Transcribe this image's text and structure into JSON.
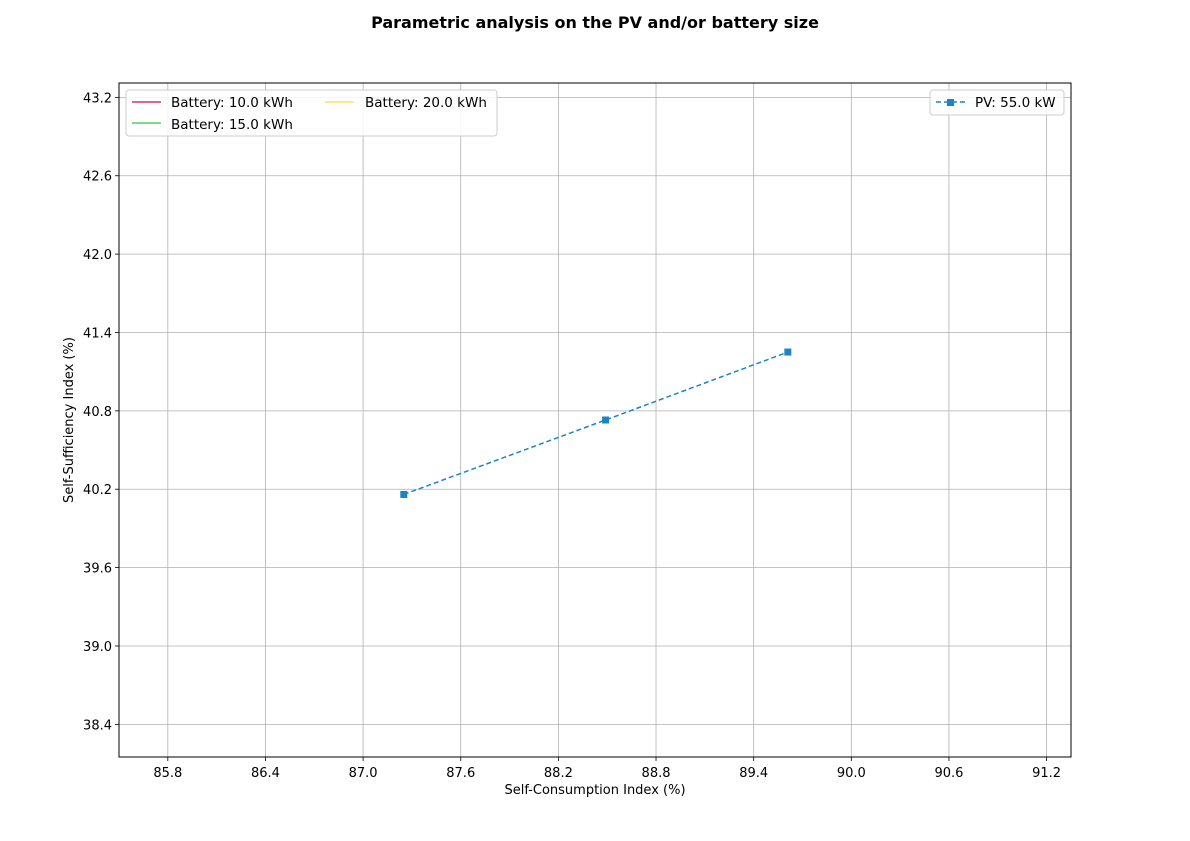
{
  "chart_data": {
    "type": "line",
    "title": "Parametric analysis on the PV and/or battery size",
    "xlabel": "Self-Consumption Index (%)",
    "ylabel": "Self-Sufficiency Index (%)",
    "xlim": [
      85.5,
      91.35
    ],
    "ylim": [
      38.15,
      43.31
    ],
    "xticks": [
      "85.8",
      "86.4",
      "87.0",
      "87.6",
      "88.2",
      "88.8",
      "89.4",
      "90.0",
      "90.6",
      "91.2"
    ],
    "yticks": [
      "38.4",
      "39.0",
      "39.6",
      "40.2",
      "40.8",
      "41.4",
      "42.0",
      "42.6",
      "43.2"
    ],
    "grid": true,
    "legend_left": {
      "placement": "top-left",
      "entries": [
        {
          "label": "Battery: 10.0 kWh",
          "color": "#d6336c"
        },
        {
          "label": "Battery: 15.0 kWh",
          "color": "#51cf66"
        },
        {
          "label": "Battery: 20.0 kWh",
          "color": "#ffe066"
        }
      ]
    },
    "legend_right": {
      "placement": "top-right",
      "entries": [
        {
          "label": "PV: 55.0 kW",
          "color": "#1c85c0"
        }
      ]
    },
    "series": [
      {
        "name": "PV: 55.0 kW",
        "color": "#1c85c0",
        "linestyle": "dashed",
        "marker": "square",
        "points": [
          {
            "x": 87.25,
            "y": 40.16
          },
          {
            "x": 88.49,
            "y": 40.73
          },
          {
            "x": 89.61,
            "y": 41.25
          }
        ]
      }
    ]
  }
}
